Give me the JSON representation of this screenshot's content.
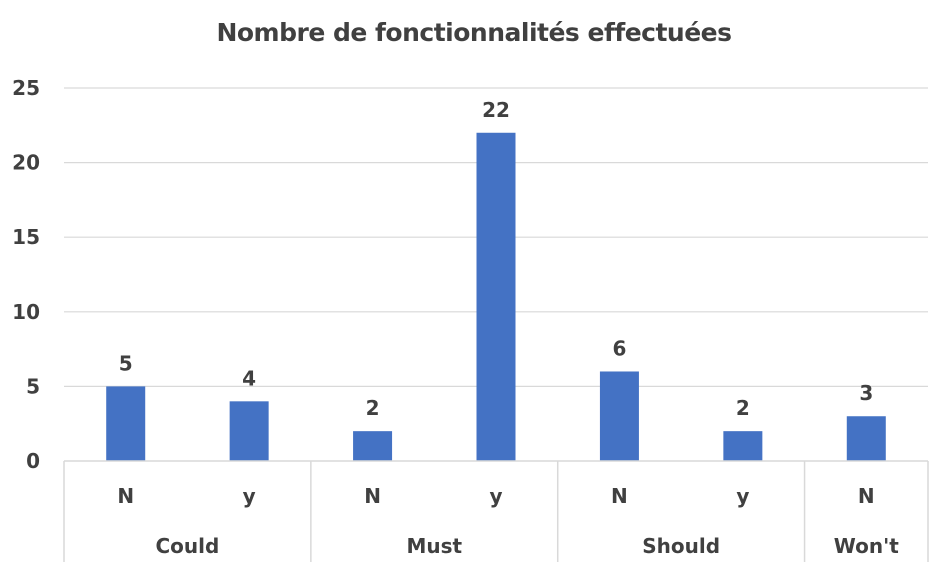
{
  "chart_data": {
    "type": "bar",
    "title": "Nombre de fonctionnalités effectuées",
    "xlabel": "",
    "ylabel": "",
    "ylim": [
      0,
      25
    ],
    "yticks": [
      0,
      5,
      10,
      15,
      20,
      25
    ],
    "grid": true,
    "legend": "none",
    "bar_color": "#4472C4",
    "groups": [
      {
        "name": "Could",
        "categories": [
          "N",
          "y"
        ],
        "values": [
          5,
          4
        ]
      },
      {
        "name": "Must",
        "categories": [
          "N",
          "y"
        ],
        "values": [
          2,
          22
        ]
      },
      {
        "name": "Should",
        "categories": [
          "N",
          "y"
        ],
        "values": [
          6,
          2
        ]
      },
      {
        "name": "Won't",
        "categories": [
          "N"
        ],
        "values": [
          3
        ]
      }
    ]
  }
}
